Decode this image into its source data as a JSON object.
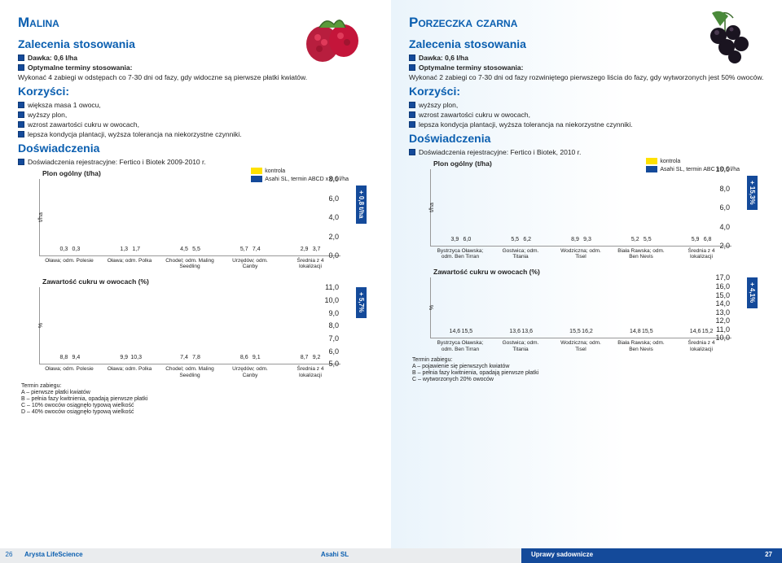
{
  "colors": {
    "kontrola": "#ffe100",
    "asahi": "#144a9a",
    "brand": "#0b5fb0"
  },
  "left": {
    "title": "Malina",
    "section1": "Zalecenia stosowania",
    "dose": "Dawka: 0,6 l/ha",
    "timing_label": "Optymalne terminy stosowania:",
    "timing_text": "Wykonać 4 zabiegi w odstępach co 7-30 dni od fazy, gdy widoczne są pierwsze płatki kwiatów.",
    "benefits_h": "Korzyści:",
    "benefits": [
      "większa masa 1 owocu,",
      "wyższy plon,",
      "wzrost zawartości cukru w owocach,",
      "lepsza kondycja plantacji, wyższa tolerancja na niekorzystne czynniki."
    ],
    "exp_h": "Doświadczenia",
    "exp_note": "Doświadczenia rejestracyjne: Fertico i Biotek 2009-2010 r.",
    "legend": {
      "a": "kontrola",
      "b": "Asahi SL, termin ABCD x 0,6 l/ha"
    },
    "chart1": {
      "title": "Plon ogólny (t/ha)",
      "ylabel": "t/ha",
      "ymax": 8,
      "ytick": 2,
      "badge": "+ 0,8 t/ha",
      "groups": [
        {
          "x": "Oława; odm. Polesie",
          "a": 0.3,
          "b": 0.3,
          "al": "0,3",
          "bl": "0,3"
        },
        {
          "x": "Oława; odm. Polka",
          "a": 1.3,
          "b": 1.7,
          "al": "1,3",
          "bl": "1,7"
        },
        {
          "x": "Chodel; odm. Maling Seedling",
          "a": 4.5,
          "b": 5.5,
          "al": "4,5",
          "bl": "5,5"
        },
        {
          "x": "Urzędów; odm. Canby",
          "a": 5.7,
          "b": 7.4,
          "al": "5,7",
          "bl": "7,4"
        },
        {
          "x": "Średnia z 4 lokalizacji",
          "a": 2.9,
          "b": 3.7,
          "al": "2,9",
          "bl": "3,7"
        }
      ]
    },
    "chart2": {
      "title": "Zawartość cukru w owocach (%)",
      "ylabel": "%",
      "ymin": 5,
      "ymax": 11,
      "ytick": 1,
      "badge": "+ 5,7%",
      "groups": [
        {
          "x": "Oława; odm. Polesie",
          "a": 8.8,
          "b": 9.4,
          "al": "8,8",
          "bl": "9,4"
        },
        {
          "x": "Oława; odm. Polka",
          "a": 9.9,
          "b": 10.3,
          "al": "9,9",
          "bl": "10,3"
        },
        {
          "x": "Chodel; odm. Maling Seedling",
          "a": 7.4,
          "b": 7.8,
          "al": "7,4",
          "bl": "7,8"
        },
        {
          "x": "Urzędów; odm. Canby",
          "a": 8.6,
          "b": 9.1,
          "al": "8,6",
          "bl": "9,1"
        },
        {
          "x": "Średnia z 4 lokalizacji",
          "a": 8.7,
          "b": 9.2,
          "al": "8,7",
          "bl": "9,2"
        }
      ]
    },
    "footnote": "Termin zabiegu:\nA – pierwsze płatki kwiatów\nB – pełnia fazy kwitnienia, opadają pierwsze płatki\nC – 10% owoców osiągnęło typową wielkość\nD – 40% owoców osiągnęło typową wielkość"
  },
  "right": {
    "title": "Porzeczka czarna",
    "section1": "Zalecenia stosowania",
    "dose": "Dawka: 0,6 l/ha",
    "timing_label": "Optymalne terminy stosowania:",
    "timing_text": "Wykonać 2 zabiegi co 7-30 dni od fazy rozwiniętego pierwszego liścia do fazy, gdy wytworzonych jest 50% owoców.",
    "benefits_h": "Korzyści:",
    "benefits": [
      "wyższy plon,",
      "wzrost zawartości cukru w owocach,",
      "lepsza kondycja plantacji, wyższa tolerancja na niekorzystne czynniki."
    ],
    "exp_h": "Doświadczenia",
    "exp_note": "Doświadczenia rejestracyjne: Fertico i Biotek, 2010 r.",
    "legend": {
      "a": "kontrola",
      "b": "Asahi SL, termin ABC x 0,6 l/ha"
    },
    "chart1": {
      "title": "Plon ogólny (t/ha)",
      "ylabel": "t/ha",
      "ymin": 2,
      "ymax": 10,
      "ytick": 2,
      "badge": "+ 15,3%",
      "groups": [
        {
          "x": "Bystrzyca Oławska; odm. Ben Tirran",
          "a": 3.9,
          "b": 6.0,
          "al": "3,9",
          "bl": "6,0"
        },
        {
          "x": "Gostwica; odm. Titania",
          "a": 5.5,
          "b": 6.2,
          "al": "5,5",
          "bl": "6,2"
        },
        {
          "x": "Wodziczna; odm. Tisel",
          "a": 8.9,
          "b": 9.3,
          "al": "8,9",
          "bl": "9,3"
        },
        {
          "x": "Biała Rawska; odm. Ben Nevis",
          "a": 5.2,
          "b": 5.5,
          "al": "5,2",
          "bl": "5,5"
        },
        {
          "x": "Średnia z 4 lokalizacji",
          "a": 5.9,
          "b": 6.8,
          "al": "5,9",
          "bl": "6,8"
        }
      ]
    },
    "chart2": {
      "title": "Zawartość cukru w owocach (%)",
      "ylabel": "%",
      "ymin": 10,
      "ymax": 17,
      "ytick": 1,
      "badge": "+ 4,1%",
      "groups": [
        {
          "x": "Bystrzyca Oławska; odm. Ben Tirran",
          "a": 14.6,
          "b": 15.5,
          "al": "14,6",
          "bl": "15,5"
        },
        {
          "x": "Gostwica; odm. Titania",
          "a": 13.6,
          "b": 13.6,
          "al": "13,6",
          "bl": "13,6"
        },
        {
          "x": "Wodziczna; odm. Tisel",
          "a": 15.5,
          "b": 16.2,
          "al": "15,5",
          "bl": "16,2"
        },
        {
          "x": "Biała Rawska; odm. Ben Nevis",
          "a": 14.8,
          "b": 15.5,
          "al": "14,8",
          "bl": "15,5"
        },
        {
          "x": "Średnia z 4 lokalizacji",
          "a": 14.6,
          "b": 15.2,
          "al": "14,6",
          "bl": "15,2"
        }
      ]
    },
    "footnote": "Termin zabiegu:\nA – pojawienie się pierwszych kwiatów\nB – pełnia fazy kwitnienia, opadają pierwsze płatki\nC – wytworzonych 20% owoców"
  },
  "footer": {
    "left_pg": "26",
    "left_brand": "Arysta LifeScience",
    "center": "Asahi SL",
    "right": "Uprawy sadownicze",
    "right_pg": "27"
  }
}
